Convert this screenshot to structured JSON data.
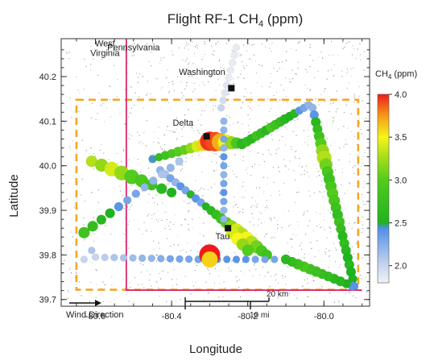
{
  "chart_data": {
    "type": "scatter",
    "title": "Flight RF-1 CH",
    "title_subscript": "4",
    "title_suffix": " (ppm)",
    "xlabel": "Longitude",
    "ylabel": "Latitude",
    "xlim": [
      -80.69,
      -79.88
    ],
    "ylim": [
      39.685,
      40.285
    ],
    "xticks": [
      -80.6,
      -80.4,
      -80.2,
      -80.0
    ],
    "xtick_labels": [
      "-80.6",
      "-80.4",
      "-80.2",
      "-80.0"
    ],
    "yticks": [
      39.7,
      39.8,
      39.9,
      40.0,
      40.1,
      40.2
    ],
    "ytick_labels": [
      "39.7",
      "39.8",
      "39.9",
      "40.0",
      "40.1",
      "40.2"
    ],
    "grid": false,
    "colorbar": {
      "title": "CH",
      "title_subscript": "4",
      "title_suffix": " (ppm)",
      "range": [
        1.8,
        4.0
      ],
      "ticks": [
        2.0,
        2.5,
        3.0,
        3.5,
        4.0
      ],
      "tick_labels": [
        "2.0",
        "2.5",
        "3.0",
        "3.5",
        "4.0"
      ],
      "colors": [
        {
          "v": 1.8,
          "c": "#f2f2f6"
        },
        {
          "v": 2.0,
          "c": "#c9d5ee"
        },
        {
          "v": 2.44,
          "c": "#4f8fe6"
        },
        {
          "v": 2.5,
          "c": "#1fb31f"
        },
        {
          "v": 3.0,
          "c": "#52cc1d"
        },
        {
          "v": 3.3,
          "c": "#b3e019"
        },
        {
          "v": 3.5,
          "c": "#f5f51a"
        },
        {
          "v": 3.75,
          "c": "#f59a1a"
        },
        {
          "v": 4.0,
          "c": "#f01a1a"
        }
      ]
    },
    "state_border": {
      "name": "state-border",
      "color": "#e0266b",
      "points": [
        [
          -80.519,
          40.285
        ],
        [
          -80.519,
          39.721
        ],
        [
          -79.9,
          39.721
        ]
      ]
    },
    "study_box": {
      "name": "study-box",
      "color": "#f5a623",
      "lon": [
        -80.65,
        -79.91
      ],
      "lat": [
        39.722,
        40.148
      ]
    },
    "labels": [
      {
        "id": "west-virginia",
        "lines": [
          "West",
          "Virginia"
        ],
        "lon": -80.575,
        "lat": 40.268
      },
      {
        "id": "pennsylvania",
        "lines": [
          "Pennsylvania"
        ],
        "lon": -80.5,
        "lat": 40.259
      },
      {
        "id": "washington",
        "lines": [
          "Washington"
        ],
        "lon": -80.32,
        "lat": 40.204
      },
      {
        "id": "delta",
        "lines": [
          "Delta"
        ],
        "lon": -80.37,
        "lat": 40.09
      },
      {
        "id": "tau",
        "lines": [
          "Tau"
        ],
        "lon": -80.266,
        "lat": 39.835
      }
    ],
    "sites": [
      {
        "id": "washington-marker",
        "lon": -80.243,
        "lat": 40.174
      },
      {
        "id": "delta-marker",
        "lon": -80.308,
        "lat": 40.066
      },
      {
        "id": "tau-marker",
        "lon": -80.252,
        "lat": 39.86
      }
    ],
    "legend_extras": {
      "wind_direction": "Wind Direction",
      "scale_km": "20 km",
      "scale_mi": "10 mi"
    },
    "flight_legs": [
      {
        "name": "leg-northeast-1",
        "from": [
          -80.45,
          40.015
        ],
        "to": [
          -80.3,
          40.052
        ],
        "n": 10,
        "ch4": [
          2.45,
          2.7,
          2.8,
          2.9,
          3.0,
          3.05,
          3.2,
          3.4,
          3.6,
          3.8
        ],
        "size": [
          5,
          5,
          5.5,
          5.5,
          6,
          6,
          6.5,
          7,
          8,
          10
        ]
      },
      {
        "name": "leg-delta-plume",
        "from": [
          -80.3,
          40.055
        ],
        "to": [
          -80.215,
          40.05
        ],
        "n": 7,
        "ch4": [
          3.95,
          3.9,
          3.7,
          3.5,
          3.2,
          2.9,
          2.6
        ],
        "size": [
          12,
          12,
          11,
          10,
          8,
          7,
          6
        ]
      },
      {
        "name": "leg-east",
        "from": [
          -80.215,
          40.048
        ],
        "to": [
          -80.04,
          40.136
        ],
        "n": 15,
        "ch4": [
          2.6,
          2.7,
          2.6,
          2.8,
          2.7,
          2.6,
          2.9,
          2.8,
          2.7,
          2.6,
          2.5,
          2.6,
          2.4,
          2.3,
          2.2
        ],
        "size": [
          6,
          6,
          6,
          6,
          6,
          6,
          6,
          6,
          6,
          6,
          5.5,
          5.5,
          5,
          5,
          5
        ]
      },
      {
        "name": "leg-southeast",
        "from": [
          -80.03,
          40.13
        ],
        "to": [
          -79.92,
          39.73
        ],
        "n": 26,
        "ch4": [
          2.2,
          2.4,
          2.6,
          2.7,
          2.8,
          3.0,
          3.2,
          3.3,
          3.1,
          2.9,
          2.8,
          2.9,
          3.0,
          2.9,
          2.8,
          2.7,
          2.8,
          2.7,
          2.6,
          2.7,
          2.6,
          2.5,
          2.6,
          2.5,
          2.5,
          2.4
        ],
        "size": [
          5,
          5.5,
          6,
          6,
          6.5,
          7,
          8,
          9,
          8,
          7,
          7,
          7,
          7,
          7,
          6.5,
          6.5,
          6.5,
          6,
          6,
          6,
          6,
          6,
          6,
          6,
          5.5,
          5
        ]
      },
      {
        "name": "leg-southwest",
        "from": [
          -79.925,
          39.73
        ],
        "to": [
          -80.1,
          39.79
        ],
        "n": 12,
        "ch4": [
          2.4,
          2.5,
          2.6,
          2.6,
          2.7,
          2.7,
          2.8,
          2.8,
          2.9,
          2.8,
          2.7,
          2.6
        ],
        "size": [
          5.5,
          5.5,
          6,
          6,
          6,
          6,
          6.5,
          6.5,
          6.5,
          6.5,
          6,
          6
        ]
      },
      {
        "name": "leg-diagonal-tau",
        "from": [
          -80.43,
          39.99
        ],
        "to": [
          -80.15,
          39.8
        ],
        "n": 22,
        "ch4": [
          2.2,
          2.1,
          2.3,
          2.2,
          2.4,
          2.3,
          2.6,
          2.4,
          2.3,
          2.5,
          2.6,
          2.7,
          2.8,
          3.0,
          3.2,
          3.4,
          3.3,
          3.5,
          3.3,
          3.1,
          2.9,
          2.8
        ],
        "size": [
          5,
          5,
          5,
          5,
          5,
          5,
          5,
          5,
          5,
          5,
          5.5,
          6,
          6.5,
          7,
          8,
          9,
          9,
          9,
          8.5,
          8,
          7,
          6.5
        ]
      },
      {
        "name": "leg-west-diagonal",
        "from": [
          -80.61,
          40.01
        ],
        "to": [
          -80.4,
          39.94
        ],
        "n": 9,
        "ch4": [
          3.3,
          3.2,
          3.4,
          3.2,
          3.0,
          2.9,
          2.8,
          2.6,
          2.5
        ],
        "size": [
          7,
          8,
          9,
          9,
          9,
          8,
          7,
          6.5,
          6
        ]
      },
      {
        "name": "leg-central-northsouth",
        "from": [
          -80.263,
          40.1
        ],
        "to": [
          -80.263,
          39.88
        ],
        "n": 12,
        "ch4": [
          2.2,
          2.2,
          2.3,
          2.2,
          2.4,
          2.3,
          2.2,
          2.3,
          2.4,
          2.3,
          2.2,
          2.2
        ],
        "size": [
          4.5,
          4.5,
          4.5,
          4.5,
          4.5,
          4.5,
          4.5,
          4.5,
          4.5,
          4.5,
          4.5,
          4.5
        ]
      },
      {
        "name": "leg-northwest-tail",
        "from": [
          -80.27,
          40.13
        ],
        "to": [
          -80.23,
          40.265
        ],
        "n": 9,
        "ch4": [
          2.0,
          1.95,
          1.9,
          1.9,
          1.85,
          1.85,
          1.85,
          1.85,
          1.85
        ],
        "size": [
          4.5,
          4.5,
          4.5,
          4.5,
          4.5,
          4.5,
          4.5,
          4.5,
          4.5
        ]
      },
      {
        "name": "leg-far-west",
        "from": [
          -80.63,
          39.85
        ],
        "to": [
          -80.38,
          40.01
        ],
        "n": 12,
        "ch4": [
          2.8,
          2.7,
          2.6,
          2.5,
          2.4,
          2.3,
          2.3,
          2.2,
          2.2,
          2.1,
          2.2,
          2.1
        ],
        "size": [
          7,
          6.5,
          6,
          6,
          5.5,
          5,
          5,
          5,
          5,
          5,
          5,
          5
        ]
      },
      {
        "name": "leg-southern-line",
        "from": [
          -80.6,
          39.795
        ],
        "to": [
          -80.33,
          39.79
        ],
        "n": 12,
        "ch4": [
          2.0,
          2.05,
          2.1,
          2.1,
          2.15,
          2.2,
          2.2,
          2.25,
          2.3,
          2.3,
          2.3,
          2.3
        ],
        "size": [
          4.5,
          4.5,
          4.5,
          4.5,
          4.5,
          4.5,
          4.5,
          4.5,
          4.5,
          4.5,
          4.5,
          4.5
        ]
      },
      {
        "name": "leg-southern-east",
        "from": [
          -80.33,
          39.79
        ],
        "to": [
          -80.13,
          39.79
        ],
        "n": 9,
        "ch4": [
          2.3,
          2.3,
          2.4,
          2.4,
          2.4,
          2.4,
          2.3,
          2.3,
          2.3
        ],
        "size": [
          4.5,
          4.5,
          4.5,
          4.5,
          4.5,
          4.5,
          4.5,
          4.5,
          4.5
        ]
      },
      {
        "name": "leg-hotspot",
        "from": [
          -80.3,
          39.8
        ],
        "to": [
          -80.3,
          39.79
        ],
        "n": 2,
        "ch4": [
          4.0,
          3.6
        ],
        "size": [
          13,
          10
        ]
      },
      {
        "name": "leg-tau-scatter",
        "from": [
          -80.24,
          39.85
        ],
        "to": [
          -80.2,
          39.81
        ],
        "n": 4,
        "ch4": [
          3.4,
          3.5,
          3.2,
          3.0
        ],
        "size": [
          8,
          8,
          7.5,
          7
        ]
      },
      {
        "name": "leg-west-end",
        "from": [
          -80.61,
          39.81
        ],
        "to": [
          -80.63,
          39.79
        ],
        "n": 2,
        "ch4": [
          2.1,
          2.0
        ],
        "size": [
          4.5,
          4.5
        ]
      }
    ]
  }
}
